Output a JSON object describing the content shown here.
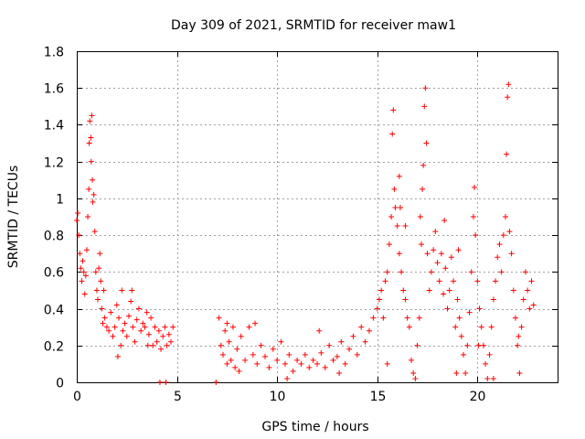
{
  "chart_data": {
    "type": "scatter",
    "title": "Day 309 of 2021, SRMTID for receiver maw1",
    "xlabel": "GPS time / hours",
    "ylabel": "SRMTID / TECUs",
    "xlim": [
      0,
      24
    ],
    "ylim": [
      0,
      1.8
    ],
    "xticks": [
      0,
      5,
      10,
      15,
      20
    ],
    "yticks": [
      0,
      0.2,
      0.4,
      0.6,
      0.8,
      1,
      1.2,
      1.4,
      1.6,
      1.8
    ],
    "xtick_labels": [
      "0",
      "5",
      "10",
      "15",
      "20"
    ],
    "ytick_labels": [
      "0",
      "0.2",
      "0.4",
      "0.6",
      "0.8",
      "1",
      "1.2",
      "1.4",
      "1.6",
      "1.8"
    ],
    "grid": true,
    "marker": "+",
    "color": "#ff0000",
    "series": [
      {
        "name": "maw1",
        "points": [
          [
            0.0,
            0.88
          ],
          [
            0.05,
            0.92
          ],
          [
            0.1,
            0.8
          ],
          [
            0.15,
            0.7
          ],
          [
            0.2,
            0.62
          ],
          [
            0.25,
            0.55
          ],
          [
            0.3,
            0.66
          ],
          [
            0.35,
            0.6
          ],
          [
            0.4,
            0.48
          ],
          [
            0.45,
            0.58
          ],
          [
            0.5,
            0.72
          ],
          [
            0.55,
            0.9
          ],
          [
            0.6,
            1.05
          ],
          [
            0.62,
            1.3
          ],
          [
            0.65,
            1.42
          ],
          [
            0.7,
            1.33
          ],
          [
            0.72,
            1.2
          ],
          [
            0.75,
            1.45
          ],
          [
            0.78,
            1.1
          ],
          [
            0.8,
            0.98
          ],
          [
            0.85,
            1.02
          ],
          [
            0.9,
            0.82
          ],
          [
            0.95,
            0.6
          ],
          [
            1.0,
            0.5
          ],
          [
            1.05,
            0.45
          ],
          [
            1.1,
            0.62
          ],
          [
            1.15,
            0.7
          ],
          [
            1.2,
            0.55
          ],
          [
            1.25,
            0.4
          ],
          [
            1.3,
            0.32
          ],
          [
            1.4,
            0.35
          ],
          [
            1.5,
            0.3
          ],
          [
            1.6,
            0.28
          ],
          [
            1.7,
            0.38
          ],
          [
            1.8,
            0.25
          ],
          [
            1.9,
            0.3
          ],
          [
            2.0,
            0.42
          ],
          [
            2.1,
            0.35
          ],
          [
            2.2,
            0.2
          ],
          [
            2.3,
            0.28
          ],
          [
            2.4,
            0.32
          ],
          [
            2.5,
            0.25
          ],
          [
            2.6,
            0.36
          ],
          [
            2.7,
            0.44
          ],
          [
            2.8,
            0.3
          ],
          [
            2.9,
            0.22
          ],
          [
            3.0,
            0.34
          ],
          [
            3.1,
            0.4
          ],
          [
            3.2,
            0.28
          ],
          [
            3.3,
            0.32
          ],
          [
            3.4,
            0.3
          ],
          [
            3.5,
            0.38
          ],
          [
            3.6,
            0.26
          ],
          [
            3.7,
            0.35
          ],
          [
            3.8,
            0.2
          ],
          [
            3.9,
            0.3
          ],
          [
            4.0,
            0.22
          ],
          [
            4.1,
            0.28
          ],
          [
            4.2,
            0.18
          ],
          [
            4.3,
            0.25
          ],
          [
            4.4,
            0.3
          ],
          [
            4.5,
            0.2
          ],
          [
            4.6,
            0.26
          ],
          [
            4.7,
            0.22
          ],
          [
            4.8,
            0.3
          ],
          [
            1.35,
            0.5
          ],
          [
            2.25,
            0.5
          ],
          [
            2.75,
            0.5
          ],
          [
            3.55,
            0.2
          ],
          [
            2.05,
            0.14
          ],
          [
            4.15,
            0.0
          ],
          [
            4.45,
            0.0
          ],
          [
            6.95,
            0.0
          ],
          [
            7.1,
            0.35
          ],
          [
            7.2,
            0.2
          ],
          [
            7.3,
            0.15
          ],
          [
            7.4,
            0.28
          ],
          [
            7.5,
            0.1
          ],
          [
            7.6,
            0.22
          ],
          [
            7.7,
            0.12
          ],
          [
            7.8,
            0.3
          ],
          [
            7.9,
            0.08
          ],
          [
            8.0,
            0.18
          ],
          [
            8.2,
            0.25
          ],
          [
            8.4,
            0.12
          ],
          [
            8.6,
            0.3
          ],
          [
            8.8,
            0.15
          ],
          [
            9.0,
            0.1
          ],
          [
            9.2,
            0.2
          ],
          [
            9.4,
            0.14
          ],
          [
            9.6,
            0.08
          ],
          [
            9.8,
            0.18
          ],
          [
            10.0,
            0.12
          ],
          [
            10.2,
            0.22
          ],
          [
            10.4,
            0.1
          ],
          [
            10.6,
            0.15
          ],
          [
            10.8,
            0.06
          ],
          [
            11.0,
            0.12
          ],
          [
            11.2,
            0.1
          ],
          [
            11.4,
            0.15
          ],
          [
            11.6,
            0.08
          ],
          [
            11.8,
            0.12
          ],
          [
            12.0,
            0.1
          ],
          [
            12.2,
            0.16
          ],
          [
            12.4,
            0.08
          ],
          [
            12.6,
            0.2
          ],
          [
            12.8,
            0.12
          ],
          [
            13.0,
            0.14
          ],
          [
            13.2,
            0.22
          ],
          [
            13.4,
            0.1
          ],
          [
            13.6,
            0.18
          ],
          [
            13.8,
            0.25
          ],
          [
            14.0,
            0.15
          ],
          [
            14.2,
            0.3
          ],
          [
            14.4,
            0.22
          ],
          [
            14.6,
            0.28
          ],
          [
            14.8,
            0.35
          ],
          [
            7.5,
            0.32
          ],
          [
            8.1,
            0.06
          ],
          [
            8.9,
            0.32
          ],
          [
            10.5,
            0.02
          ],
          [
            12.1,
            0.28
          ],
          [
            13.1,
            0.05
          ],
          [
            15.0,
            0.4
          ],
          [
            15.1,
            0.45
          ],
          [
            15.2,
            0.5
          ],
          [
            15.3,
            0.35
          ],
          [
            15.4,
            0.55
          ],
          [
            15.5,
            0.6
          ],
          [
            15.6,
            0.75
          ],
          [
            15.7,
            0.9
          ],
          [
            15.75,
            1.35
          ],
          [
            15.8,
            1.48
          ],
          [
            15.85,
            1.05
          ],
          [
            15.9,
            0.95
          ],
          [
            16.0,
            0.85
          ],
          [
            16.1,
            0.7
          ],
          [
            16.2,
            0.6
          ],
          [
            16.3,
            0.5
          ],
          [
            16.4,
            0.45
          ],
          [
            16.5,
            0.35
          ],
          [
            16.6,
            0.3
          ],
          [
            16.7,
            0.12
          ],
          [
            16.8,
            0.05
          ],
          [
            16.9,
            0.02
          ],
          [
            17.0,
            0.2
          ],
          [
            17.1,
            0.35
          ],
          [
            17.2,
            0.75
          ],
          [
            17.25,
            1.05
          ],
          [
            17.3,
            1.18
          ],
          [
            17.35,
            1.5
          ],
          [
            17.4,
            1.6
          ],
          [
            17.45,
            1.3
          ],
          [
            17.5,
            0.7
          ],
          [
            17.6,
            0.5
          ],
          [
            17.7,
            0.6
          ],
          [
            17.8,
            0.72
          ],
          [
            17.9,
            0.82
          ],
          [
            18.0,
            0.65
          ],
          [
            18.1,
            0.55
          ],
          [
            18.2,
            0.7
          ],
          [
            18.3,
            0.48
          ],
          [
            18.4,
            0.62
          ],
          [
            18.5,
            0.4
          ],
          [
            18.6,
            0.5
          ],
          [
            18.7,
            0.68
          ],
          [
            18.8,
            0.55
          ],
          [
            18.9,
            0.3
          ],
          [
            19.0,
            0.45
          ],
          [
            19.1,
            0.35
          ],
          [
            19.2,
            0.25
          ],
          [
            19.3,
            0.15
          ],
          [
            19.4,
            0.05
          ],
          [
            19.5,
            0.2
          ],
          [
            19.6,
            0.38
          ],
          [
            19.7,
            0.6
          ],
          [
            19.8,
            0.9
          ],
          [
            19.85,
            1.06
          ],
          [
            19.9,
            0.8
          ],
          [
            20.0,
            0.55
          ],
          [
            20.1,
            0.4
          ],
          [
            20.2,
            0.3
          ],
          [
            20.3,
            0.2
          ],
          [
            20.4,
            0.1
          ],
          [
            20.5,
            0.02
          ],
          [
            20.6,
            0.15
          ],
          [
            20.7,
            0.3
          ],
          [
            20.8,
            0.45
          ],
          [
            20.9,
            0.55
          ],
          [
            21.0,
            0.68
          ],
          [
            21.1,
            0.75
          ],
          [
            21.2,
            0.6
          ],
          [
            21.3,
            0.8
          ],
          [
            21.4,
            0.9
          ],
          [
            21.45,
            1.24
          ],
          [
            21.5,
            1.55
          ],
          [
            21.55,
            1.62
          ],
          [
            21.6,
            0.82
          ],
          [
            21.7,
            0.7
          ],
          [
            21.8,
            0.5
          ],
          [
            21.9,
            0.35
          ],
          [
            22.0,
            0.2
          ],
          [
            22.1,
            0.05
          ],
          [
            22.2,
            0.3
          ],
          [
            22.3,
            0.45
          ],
          [
            22.4,
            0.6
          ],
          [
            22.5,
            0.5
          ],
          [
            22.6,
            0.4
          ],
          [
            22.7,
            0.55
          ],
          [
            22.8,
            0.42
          ],
          [
            16.1,
            1.12
          ],
          [
            16.15,
            0.95
          ],
          [
            17.15,
            0.9
          ],
          [
            18.35,
            0.88
          ],
          [
            20.05,
            0.2
          ],
          [
            20.8,
            0.02
          ],
          [
            15.5,
            0.1
          ],
          [
            16.4,
            0.85
          ],
          [
            18.95,
            0.05
          ],
          [
            22.05,
            0.25
          ],
          [
            19.05,
            0.72
          ]
        ]
      }
    ]
  }
}
